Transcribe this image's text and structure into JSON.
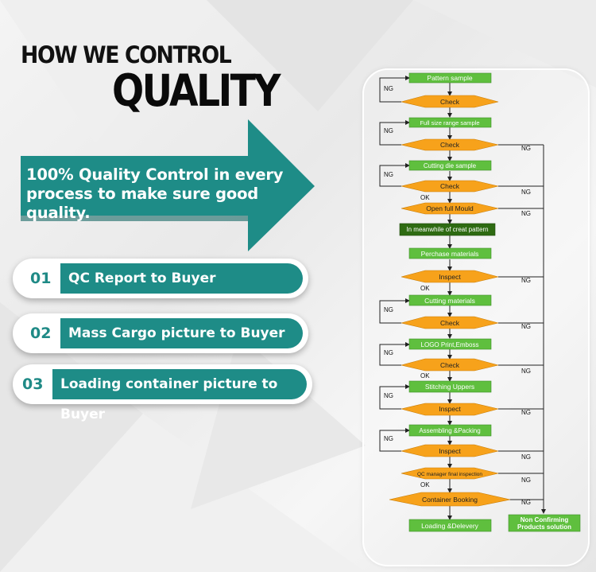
{
  "title": {
    "line1": "HOW WE CONTROL",
    "line2": "QUALITY"
  },
  "arrow_text": "100% Quality Control in every process to make sure good quality.",
  "points": [
    {
      "number": "01",
      "label": "QC Report to Buyer"
    },
    {
      "number": "02",
      "label": "Mass Cargo picture to Buyer"
    },
    {
      "number": "03",
      "label": "Loading container picture to Buyer"
    }
  ],
  "flow": {
    "steps": {
      "pattern_sample": "Pattern sample",
      "check1": "Check",
      "full_size": "Full size range sample",
      "check2": "Check",
      "cutting_die": "Cutting die sample",
      "check3": "Check",
      "open_mould": "Open full Mould",
      "meanwhile": "In meanwhile of creat pattern",
      "purchase": "Perchase materials",
      "inspect1": "Inspect",
      "cutting_materials": "Cutting materials",
      "check4": "Check",
      "logo": "LOGO Print,Emboss",
      "check5": "Check",
      "stitching": "Stitching Uppers",
      "inspect2": "Inspect",
      "assembling": "Assembling &Packing",
      "inspect3": "Inspect",
      "qc_final": "QC manager final inspection",
      "booking": "Container Booking",
      "loading": "Loading &Delevery",
      "non_conf_1": "Non Confirming",
      "non_conf_2": "Products solution"
    },
    "ng": "NG",
    "ok": "OK"
  },
  "colors": {
    "teal": "#1e8c87",
    "green": "#5fbf3e",
    "orange": "#f7a21b",
    "dark_green": "#2e6b12"
  }
}
